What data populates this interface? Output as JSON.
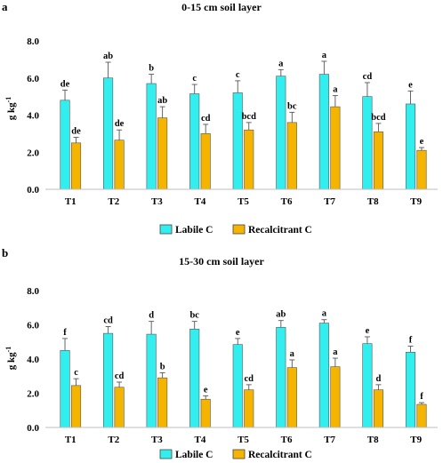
{
  "colors": {
    "labile": "#33eeee",
    "recalcitrant": "#f4b400",
    "errorbar": "#555555",
    "axis": "#bfbfbf"
  },
  "chart_data": [
    {
      "type": "bar",
      "panel": "a",
      "title": "0-15 cm soil layer",
      "ylabel": "g kg",
      "ylabel_sup": "-1",
      "xlabel": "",
      "ylim": [
        0,
        8
      ],
      "yticks": [
        "0.0",
        "2.0",
        "4.0",
        "6.0",
        "8.0"
      ],
      "categories": [
        "T1",
        "T2",
        "T3",
        "T4",
        "T5",
        "T6",
        "T7",
        "T8",
        "T9"
      ],
      "series": [
        {
          "name": "Labile C",
          "values": [
            4.8,
            6.0,
            5.7,
            5.15,
            5.2,
            6.1,
            6.2,
            5.0,
            4.6
          ],
          "errors": [
            0.55,
            0.85,
            0.5,
            0.5,
            0.65,
            0.35,
            0.7,
            0.75,
            0.7
          ],
          "letters": [
            "de",
            "ab",
            "b",
            "c",
            "c",
            "a",
            "a",
            "cd",
            "e"
          ]
        },
        {
          "name": "Recalcitrant C",
          "values": [
            2.5,
            2.65,
            3.85,
            3.0,
            3.2,
            3.6,
            4.45,
            3.1,
            2.1
          ],
          "errors": [
            0.3,
            0.55,
            0.6,
            0.5,
            0.4,
            0.55,
            0.6,
            0.45,
            0.15
          ],
          "letters": [
            "de",
            "de",
            "ab",
            "cd",
            "bcd",
            "bc",
            "a",
            "bcd",
            "e"
          ]
        }
      ],
      "legend": "bottom-center"
    },
    {
      "type": "bar",
      "panel": "b",
      "title": "15-30 cm soil layer",
      "ylabel": "g kg",
      "ylabel_sup": "-1",
      "xlabel": "",
      "ylim": [
        0,
        8
      ],
      "yticks": [
        "0.0",
        "2.0",
        "4.0",
        "6.0",
        "8.0"
      ],
      "categories": [
        "T1",
        "T2",
        "T3",
        "T4",
        "T5",
        "T6",
        "T7",
        "T8",
        "T9"
      ],
      "series": [
        {
          "name": "Labile C",
          "values": [
            4.5,
            5.5,
            5.45,
            5.75,
            4.85,
            5.85,
            6.1,
            4.9,
            4.4
          ],
          "errors": [
            0.7,
            0.4,
            0.75,
            0.45,
            0.35,
            0.4,
            0.2,
            0.4,
            0.35
          ],
          "letters": [
            "f",
            "cd",
            "d",
            "bc",
            "e",
            "ab",
            "a",
            "e",
            "f"
          ]
        },
        {
          "name": "Recalcitrant C",
          "values": [
            2.45,
            2.35,
            2.9,
            1.65,
            2.2,
            3.5,
            3.55,
            2.2,
            1.35
          ],
          "errors": [
            0.4,
            0.3,
            0.3,
            0.2,
            0.3,
            0.45,
            0.5,
            0.3,
            0.1
          ],
          "letters": [
            "c",
            "cd",
            "b",
            "e",
            "cd",
            "a",
            "a",
            "d",
            "f"
          ]
        }
      ],
      "legend": "bottom-center"
    }
  ]
}
